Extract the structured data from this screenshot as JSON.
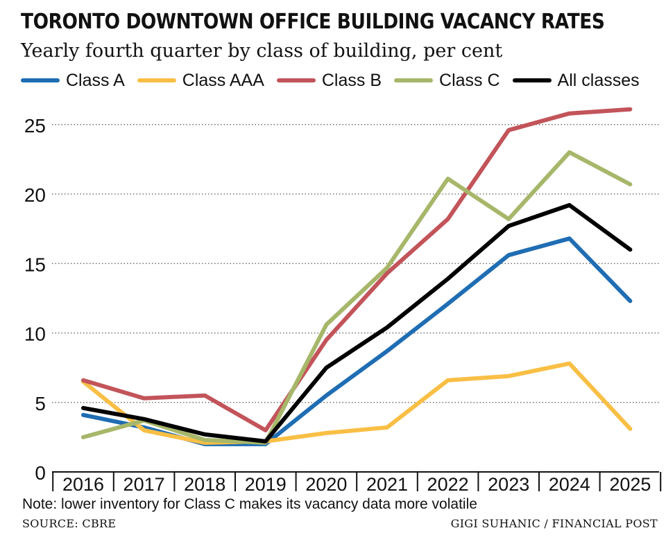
{
  "chart_data": {
    "type": "line",
    "title": "TORONTO DOWNTOWN OFFICE BUILDING VACANCY RATES",
    "subtitle": "Yearly fourth quarter by class of building, per cent",
    "x": [
      "2016",
      "2017",
      "2018",
      "2019",
      "2020",
      "2021",
      "2022",
      "2023",
      "2024",
      "2025"
    ],
    "yticks": [
      0,
      5,
      10,
      15,
      20,
      25
    ],
    "ylim": [
      0,
      26.5
    ],
    "grid": "horizontal dotted",
    "legend_position": "top",
    "series": [
      {
        "name": "Class A",
        "color": "#1f6db3",
        "values": [
          4.1,
          3.2,
          2.0,
          2.0,
          5.5,
          8.7,
          12.1,
          15.6,
          16.8,
          12.3
        ]
      },
      {
        "name": "Class AAA",
        "color": "#f9bf45",
        "values": [
          6.5,
          3.0,
          2.1,
          2.2,
          2.8,
          3.2,
          6.6,
          6.9,
          7.8,
          3.1
        ]
      },
      {
        "name": "Class B",
        "color": "#c2545a",
        "values": [
          6.6,
          5.3,
          5.5,
          3.0,
          9.5,
          14.3,
          18.2,
          24.6,
          25.8,
          26.1
        ]
      },
      {
        "name": "Class C",
        "color": "#a6b76a",
        "values": [
          2.5,
          3.7,
          2.3,
          2.1,
          10.6,
          14.7,
          21.1,
          18.2,
          23.0,
          20.7
        ]
      },
      {
        "name": "All classes",
        "color": "#000000",
        "values": [
          4.6,
          3.8,
          2.7,
          2.2,
          7.5,
          10.4,
          13.9,
          17.7,
          19.2,
          16.0
        ]
      }
    ]
  },
  "note": "Note:  lower inventory for Class C makes its vacancy data more volatile",
  "source": "SOURCE: CBRE",
  "credit": "GIGI SUHANIC / FINANCIAL POST"
}
